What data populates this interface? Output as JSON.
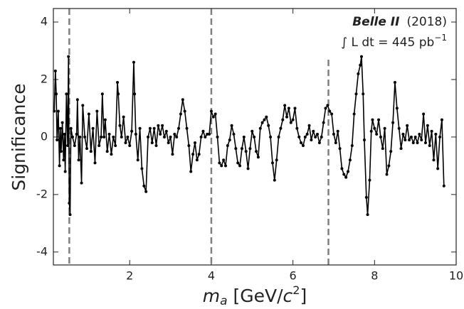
{
  "chart_data": {
    "type": "line",
    "ylabel": "Significance",
    "xlabel_parts": [
      "m",
      "a",
      " [GeV/",
      "c",
      "2",
      "]"
    ],
    "label_experiment": "Belle II",
    "label_year": "(2018)",
    "label_lumi": "∫ L dt = 445 pb",
    "label_lumi_exp": "−1",
    "xlim": [
      0.13,
      10
    ],
    "ylim": [
      -4.45,
      4.47
    ],
    "xticks": [
      2,
      4,
      6,
      8,
      10
    ],
    "yticks": [
      -4,
      -2,
      0,
      2,
      4
    ],
    "vlines": [
      0.52,
      4.0,
      6.87
    ],
    "vline_color": "#7f7f7f",
    "series": [
      {
        "color": "#000000",
        "x": [
          0.15,
          0.18,
          0.2,
          0.22,
          0.25,
          0.28,
          0.3,
          0.32,
          0.35,
          0.38,
          0.4,
          0.42,
          0.45,
          0.48,
          0.5,
          0.52,
          0.54,
          0.56,
          0.6,
          0.65,
          0.7,
          0.72,
          0.75,
          0.78,
          0.82,
          0.85,
          0.9,
          0.95,
          1.0,
          1.05,
          1.1,
          1.15,
          1.2,
          1.25,
          1.3,
          1.33,
          1.37,
          1.4,
          1.45,
          1.5,
          1.55,
          1.6,
          1.65,
          1.7,
          1.72,
          1.76,
          1.8,
          1.85,
          1.9,
          1.95,
          2.0,
          2.05,
          2.1,
          2.12,
          2.15,
          2.2,
          2.25,
          2.3,
          2.35,
          2.4,
          2.45,
          2.5,
          2.55,
          2.6,
          2.65,
          2.7,
          2.75,
          2.8,
          2.85,
          2.9,
          2.95,
          3.0,
          3.05,
          3.1,
          3.15,
          3.2,
          3.25,
          3.3,
          3.35,
          3.4,
          3.45,
          3.5,
          3.55,
          3.6,
          3.65,
          3.7,
          3.75,
          3.8,
          3.85,
          3.9,
          3.95,
          4.0,
          4.05,
          4.1,
          4.15,
          4.2,
          4.25,
          4.3,
          4.35,
          4.4,
          4.45,
          4.5,
          4.55,
          4.6,
          4.65,
          4.7,
          4.75,
          4.8,
          4.85,
          4.9,
          4.95,
          5.0,
          5.05,
          5.1,
          5.15,
          5.2,
          5.25,
          5.3,
          5.35,
          5.4,
          5.45,
          5.5,
          5.55,
          5.6,
          5.65,
          5.7,
          5.75,
          5.8,
          5.85,
          5.9,
          5.95,
          6.0,
          6.05,
          6.1,
          6.15,
          6.2,
          6.25,
          6.3,
          6.35,
          6.4,
          6.45,
          6.5,
          6.55,
          6.6,
          6.65,
          6.7,
          6.75,
          6.8,
          6.85,
          6.9,
          6.95,
          7.0,
          7.05,
          7.1,
          7.15,
          7.2,
          7.25,
          7.3,
          7.35,
          7.4,
          7.45,
          7.5,
          7.55,
          7.6,
          7.65,
          7.68,
          7.72,
          7.75,
          7.8,
          7.83,
          7.88,
          7.92,
          7.95,
          8.0,
          8.05,
          8.1,
          8.15,
          8.2,
          8.25,
          8.3,
          8.35,
          8.4,
          8.45,
          8.5,
          8.55,
          8.6,
          8.65,
          8.7,
          8.75,
          8.8,
          8.85,
          8.9,
          8.95,
          9.0,
          9.05,
          9.1,
          9.15,
          9.2,
          9.25,
          9.3,
          9.35,
          9.4,
          9.45,
          9.5,
          9.55,
          9.6,
          9.65,
          9.7
        ],
        "values": [
          0.9,
          2.3,
          1.5,
          -0.1,
          0.9,
          -1.0,
          0.3,
          -0.5,
          0.5,
          -0.8,
          0.1,
          -1.2,
          1.5,
          -0.3,
          2.8,
          -2.3,
          -2.7,
          0.3,
          0.0,
          -0.3,
          0.1,
          1.3,
          -0.8,
          0.0,
          -1.6,
          1.1,
          0.0,
          -0.4,
          0.8,
          -0.5,
          0.3,
          -0.9,
          0.9,
          -0.3,
          0.0,
          1.5,
          0.0,
          0.6,
          -0.5,
          0.1,
          -0.6,
          0.0,
          -0.3,
          1.9,
          1.5,
          0.4,
          0.0,
          0.7,
          -0.2,
          0.0,
          -0.3,
          0.2,
          2.6,
          1.5,
          0.1,
          -0.8,
          0.3,
          -1.1,
          -1.7,
          -1.9,
          0.0,
          0.3,
          -0.2,
          0.3,
          -0.3,
          0.4,
          0.1,
          0.4,
          0.0,
          0.2,
          -0.2,
          0.0,
          -0.6,
          0.1,
          0.0,
          0.3,
          0.8,
          1.3,
          0.9,
          0.3,
          -0.3,
          -1.2,
          -0.6,
          -0.2,
          -0.8,
          -0.6,
          0.0,
          0.2,
          0.0,
          0.1,
          0.1,
          0.9,
          0.7,
          0.8,
          0.0,
          -0.9,
          -1.0,
          -0.8,
          -1.0,
          -0.3,
          -0.1,
          0.4,
          0.1,
          -0.4,
          -0.9,
          -1.0,
          -0.4,
          0.0,
          -0.5,
          -1.1,
          -0.4,
          0.2,
          0.0,
          -0.5,
          -0.7,
          0.3,
          0.5,
          0.6,
          0.7,
          0.4,
          0.0,
          -0.9,
          -1.5,
          -0.8,
          0.0,
          0.3,
          0.6,
          1.1,
          0.7,
          1.0,
          0.5,
          0.6,
          1.0,
          0.3,
          0.0,
          -0.2,
          -0.3,
          0.0,
          0.1,
          0.4,
          -0.1,
          0.2,
          0.0,
          0.1,
          -0.2,
          0.0,
          0.5,
          1.0,
          1.1,
          0.9,
          0.8,
          0.1,
          -0.2,
          0.2,
          -0.4,
          -1.1,
          -1.3,
          -1.4,
          -1.2,
          -0.8,
          -0.3,
          0.8,
          1.5,
          2.2,
          2.5,
          2.8,
          1.5,
          -0.1,
          -2.1,
          -2.7,
          -1.5,
          0.2,
          0.6,
          0.3,
          0.1,
          0.6,
          0.0,
          -0.4,
          0.3,
          -1.3,
          -1.0,
          -0.5,
          0.5,
          1.9,
          1.0,
          0.3,
          -0.4,
          0.1,
          -0.1,
          0.4,
          -0.1,
          0.0,
          -0.2,
          0.0,
          -0.2,
          0.1,
          -0.1,
          0.8,
          -0.2,
          0.4,
          -0.3,
          0.2,
          -0.8,
          0.1,
          -1.1,
          0.0,
          0.6,
          -1.7
        ]
      }
    ]
  }
}
